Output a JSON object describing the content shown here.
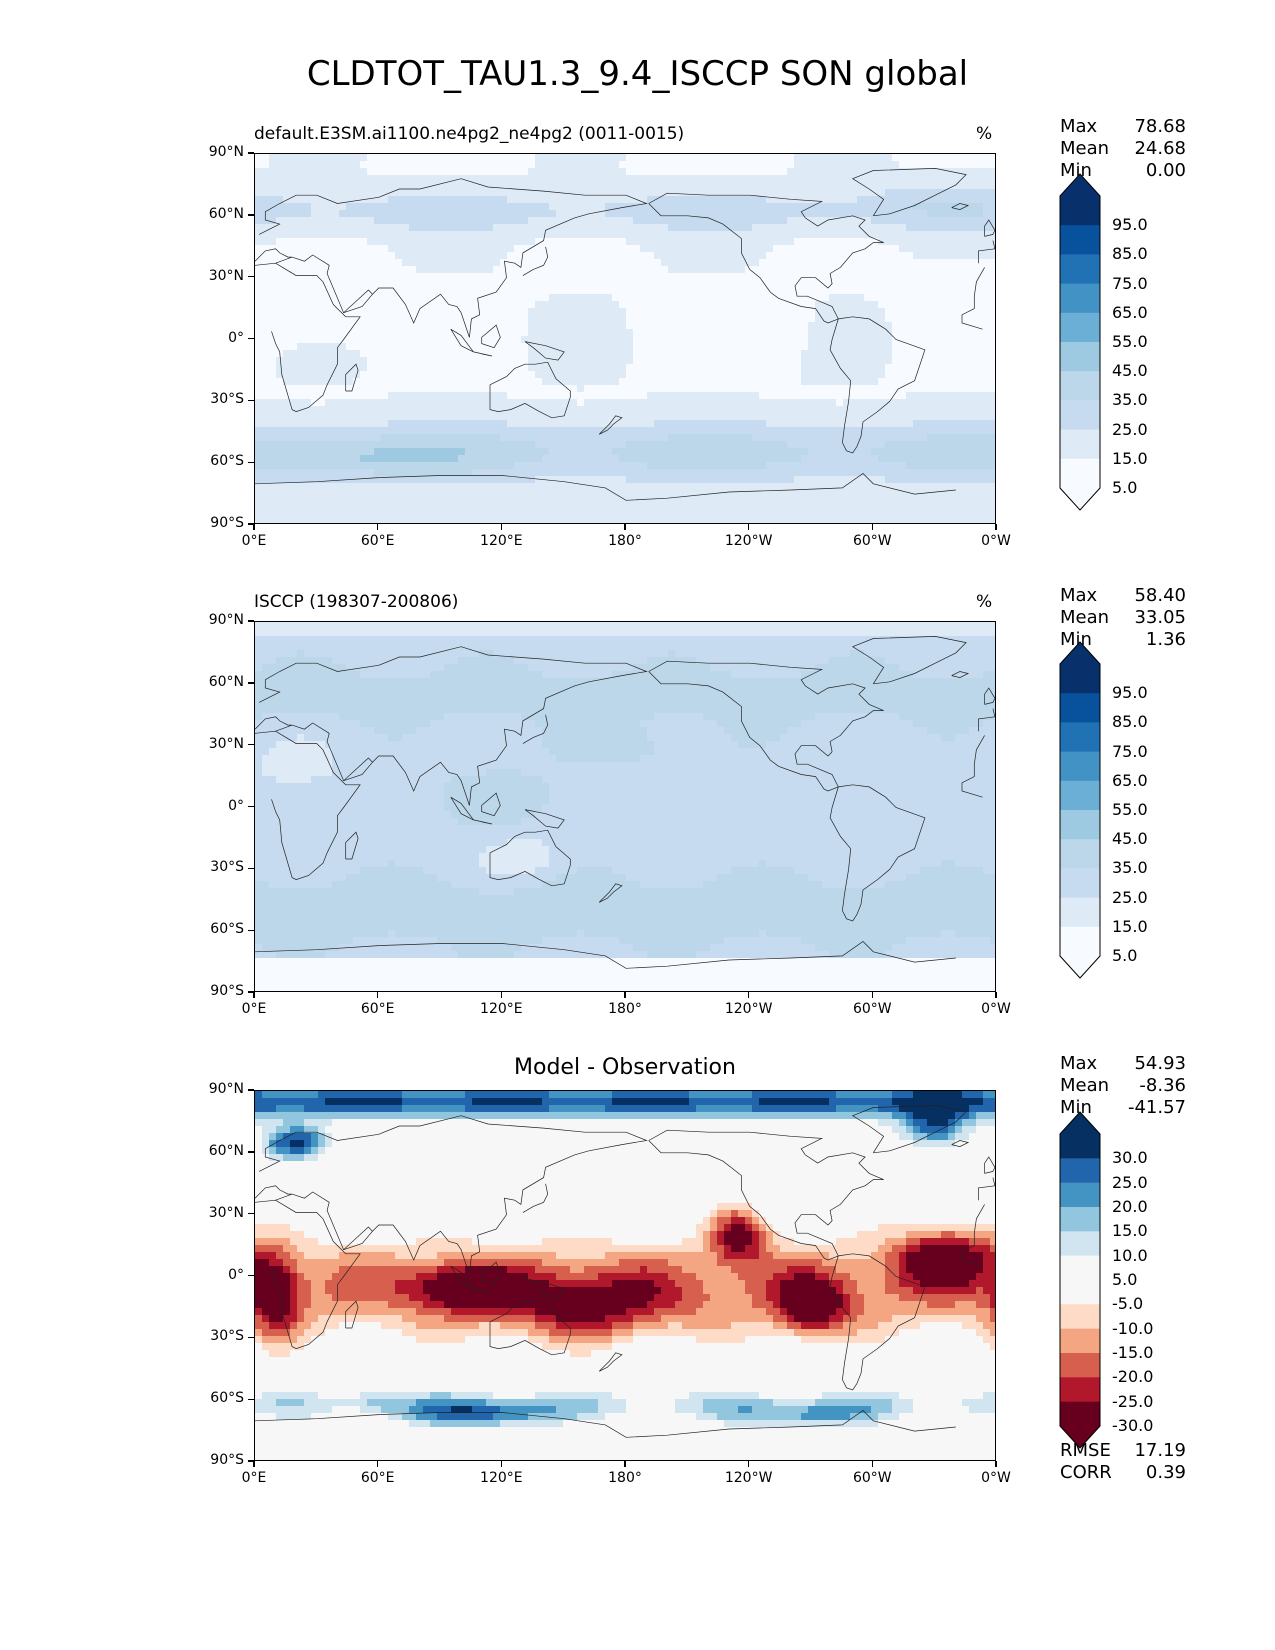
{
  "title": "CLDTOT_TAU1.3_9.4_ISCCP SON global",
  "x_ticks": [
    "0°E",
    "60°E",
    "120°E",
    "180°",
    "120°W",
    "60°W",
    "0°W"
  ],
  "y_ticks": [
    "90°N",
    "60°N",
    "30°N",
    "0°",
    "30°S",
    "60°S",
    "90°S"
  ],
  "panels": [
    {
      "id": "model",
      "title": "default.E3SM.ai1100.ne4pg2_ne4pg2 (0011-0015)",
      "units": "%",
      "stats": [
        {
          "label": "Max",
          "value": "78.68"
        },
        {
          "label": "Mean",
          "value": "24.68"
        },
        {
          "label": "Min",
          "value": "0.00"
        }
      ],
      "colorbar": {
        "labels": [
          "95.0",
          "85.0",
          "75.0",
          "65.0",
          "55.0",
          "45.0",
          "35.0",
          "25.0",
          "15.0",
          "5.0"
        ],
        "colors": [
          "#08306b",
          "#08519c",
          "#2171b5",
          "#4292c6",
          "#6baed6",
          "#9ecae1",
          "#bcd7ea",
          "#c6dbef",
          "#deebf7",
          "#f7fbff"
        ]
      }
    },
    {
      "id": "obs",
      "title": "ISCCP (198307-200806)",
      "units": "%",
      "stats": [
        {
          "label": "Max",
          "value": "58.40"
        },
        {
          "label": "Mean",
          "value": "33.05"
        },
        {
          "label": "Min",
          "value": "1.36"
        }
      ],
      "colorbar": {
        "labels": [
          "95.0",
          "85.0",
          "75.0",
          "65.0",
          "55.0",
          "45.0",
          "35.0",
          "25.0",
          "15.0",
          "5.0"
        ],
        "colors": [
          "#08306b",
          "#08519c",
          "#2171b5",
          "#4292c6",
          "#6baed6",
          "#9ecae1",
          "#bcd7ea",
          "#c6dbef",
          "#deebf7",
          "#f7fbff"
        ]
      }
    },
    {
      "id": "diff",
      "title": "Model - Observation",
      "units": "",
      "stats": [
        {
          "label": "Max",
          "value": "54.93"
        },
        {
          "label": "Mean",
          "value": "-8.36"
        },
        {
          "label": "Min",
          "value": "-41.57"
        }
      ],
      "extra_stats": [
        {
          "label": "RMSE",
          "value": "17.19"
        },
        {
          "label": "CORR",
          "value": "0.39"
        }
      ],
      "colorbar": {
        "labels": [
          "30.0",
          "25.0",
          "20.0",
          "15.0",
          "10.0",
          "5.0",
          "-5.0",
          "-10.0",
          "-15.0",
          "-20.0",
          "-25.0",
          "-30.0"
        ],
        "colors": [
          "#053061",
          "#2166ac",
          "#4393c3",
          "#92c5de",
          "#d1e5f0",
          "#f7f7f7",
          "#f7f7f7",
          "#fddbc7",
          "#f4a582",
          "#d6604d",
          "#b2182b",
          "#67001f"
        ]
      }
    }
  ]
}
